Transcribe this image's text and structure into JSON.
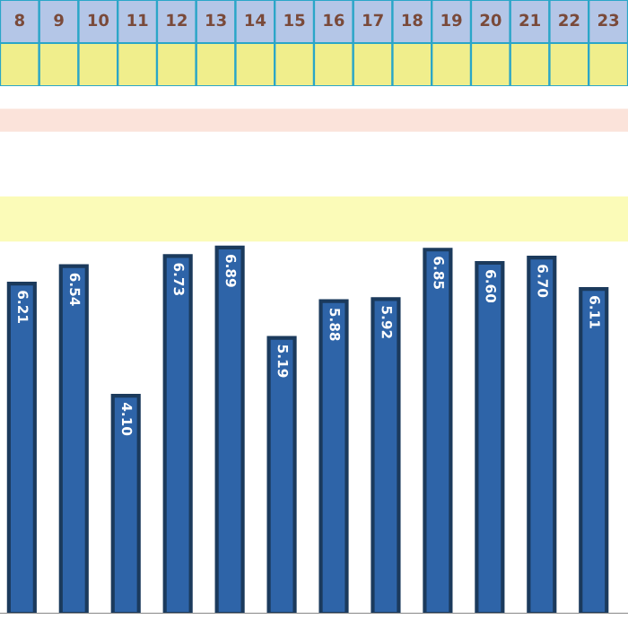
{
  "chart_data": {
    "type": "bar",
    "categories": [
      null,
      null,
      null,
      null,
      null,
      null,
      null,
      null,
      null,
      null,
      null,
      null
    ],
    "values": [
      6.21,
      6.54,
      4.1,
      6.73,
      6.89,
      5.19,
      5.88,
      5.92,
      6.85,
      6.6,
      6.7,
      6.11
    ],
    "value_labels": [
      "6.21",
      "6.54",
      "4.10",
      "6.73",
      "6.89",
      "5.19",
      "5.88",
      "5.92",
      "6.85",
      "6.60",
      "6.70",
      "6.11"
    ],
    "color": "#2e64a8",
    "bands": [
      {
        "axis": "y",
        "from": 7.0,
        "to": 7.85,
        "color": "#fbfbb8"
      },
      {
        "axis": "y",
        "from": 9.07,
        "to": 9.5,
        "color": "#fbe3da"
      }
    ],
    "annotations": [
      "8",
      "9",
      "10",
      "11",
      "12",
      "13",
      "14",
      "15",
      "16",
      "17",
      "18",
      "19",
      "20",
      "21",
      "22",
      "23"
    ]
  }
}
